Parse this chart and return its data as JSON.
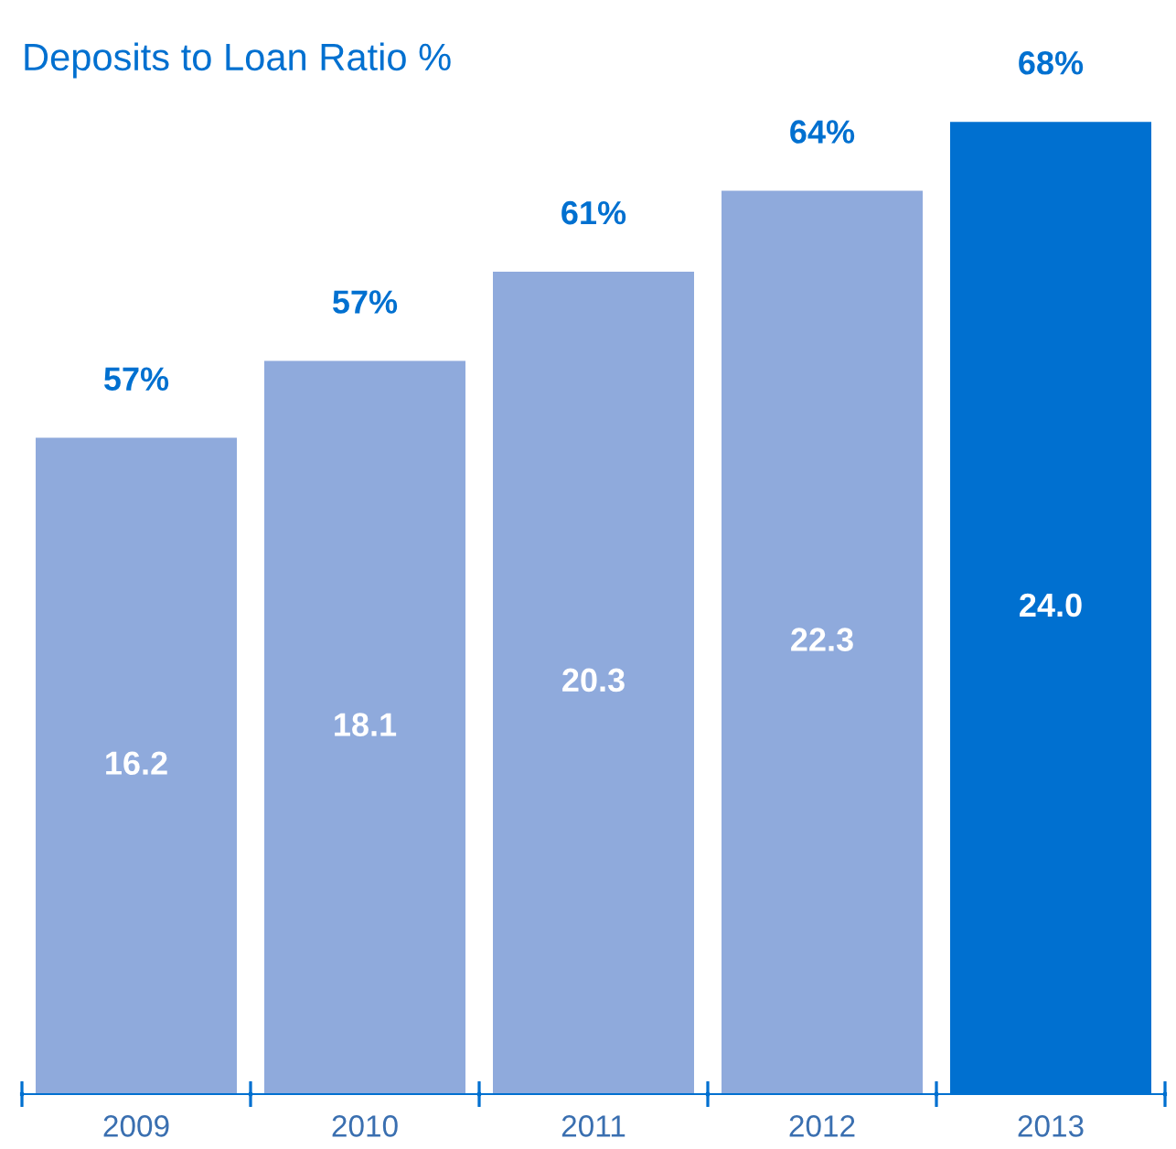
{
  "chart_data": {
    "type": "bar",
    "title": "Deposits to Loan Ratio %",
    "categories": [
      "2009",
      "2010",
      "2011",
      "2012",
      "2013"
    ],
    "values": [
      16.2,
      18.1,
      20.3,
      22.3,
      24.0
    ],
    "colors": [
      "#8faadc",
      "#8faadc",
      "#8faadc",
      "#8faadc",
      "#0070d0"
    ],
    "value_labels": [
      "16.2",
      "18.1",
      "20.3",
      "22.3",
      "24.0"
    ],
    "annotations": [
      {
        "text": "57%",
        "x": "2009",
        "y": 16.2
      },
      {
        "text": "57%",
        "x": "2010",
        "y": 18.1
      },
      {
        "text": "61%",
        "x": "2011",
        "y": 20.3
      },
      {
        "text": "64%",
        "x": "2012",
        "y": 22.3
      },
      {
        "text": "68%",
        "x": "2013",
        "y": 24.0
      }
    ],
    "grid": false,
    "legend": false
  }
}
